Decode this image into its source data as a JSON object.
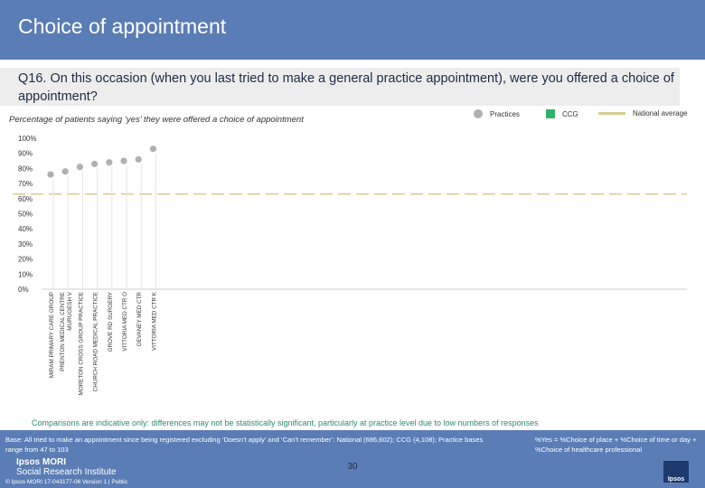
{
  "header": {
    "title": "Choice of appointment"
  },
  "question": "Q16. On this occasion (when you last tried to make a general practice appointment), were you offered a choice of appointment?",
  "subtitle": "Percentage of patients saying ‘yes’ they were offered a choice of appointment",
  "legend": {
    "practices": "Practices",
    "ccg": "CCG",
    "national": "National average"
  },
  "colors": {
    "header": "#5b7db5",
    "practices": "#b0b0b0",
    "ccg": "#2fb56a",
    "national": "#d8cc90"
  },
  "chart_data": {
    "type": "scatter",
    "categories": [
      "MIRAM PRIMARY CARE GROUP",
      "PRENTON MEDICAL CENTRE_MURUGESH V",
      "MORETON CROSS GROUP PRACTICE",
      "CHURCH ROAD MEDICAL PRACTICE",
      "GROVE RD SURGERY",
      "VITTORIA MED CTR O",
      "DEVANEY MED CTR",
      "VITTORIA MED CTR K"
    ],
    "values": [
      76,
      78,
      81,
      83,
      84,
      85,
      86,
      93
    ],
    "national_average": 63,
    "yticks": [
      "0%",
      "10%",
      "20%",
      "30%",
      "40%",
      "50%",
      "60%",
      "70%",
      "80%",
      "90%",
      "100%"
    ],
    "ylim": [
      0,
      100
    ]
  },
  "note": "Comparisons are indicative only: differences may not be statistically significant, particularly at practice level due to low numbers of responses",
  "footer": {
    "base": "Base: All tried to make an appointment since being registered excluding ‘Doesn’t apply’ and ‘Can’t remember’: National (686,602); CCG (4,108); Practice bases range from 47 to 103",
    "pct_note": "%Yes = %Choice of place + %Choice of time or day + %Choice of healthcare professional",
    "logo_line1": "Ipsos MORI",
    "logo_line2": "Social Research Institute",
    "page": "30",
    "copyright": "© Ipsos MORI      17-043177-06 Version 1 | Public",
    "logo_mark": "Ipsos"
  }
}
